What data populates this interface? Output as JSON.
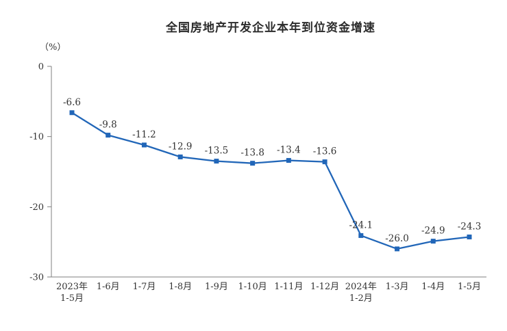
{
  "page": {
    "title": "全国房地产开发企业本年到位资金增速",
    "unit_label": "（%）"
  },
  "chart_data": {
    "type": "line",
    "title": "全国房地产开发企业本年到位资金增速",
    "ylabel": "（%）",
    "xlabel": "",
    "ylim": [
      -30,
      0
    ],
    "yticks": [
      0,
      -10,
      -20,
      -30
    ],
    "grid": false,
    "legend": "none",
    "line_color": "#2166b8",
    "axis_color": "#7f7f7f",
    "categories": [
      "2023年\n1-5月",
      "1-6月",
      "1-7月",
      "1-8月",
      "1-9月",
      "1-10月",
      "1-11月",
      "1-12月",
      "2024年\n1-2月",
      "1-3月",
      "1-4月",
      "1-5月"
    ],
    "values": [
      -6.6,
      -9.8,
      -11.2,
      -12.9,
      -13.5,
      -13.8,
      -13.4,
      -13.6,
      -24.1,
      -26.0,
      -24.9,
      -24.3
    ],
    "value_labels": [
      "-6.6",
      "-9.8",
      "-11.2",
      "-12.9",
      "-13.5",
      "-13.8",
      "-13.4",
      "-13.6",
      "-24.1",
      "-26.0",
      "-24.9",
      "-24.3"
    ]
  }
}
